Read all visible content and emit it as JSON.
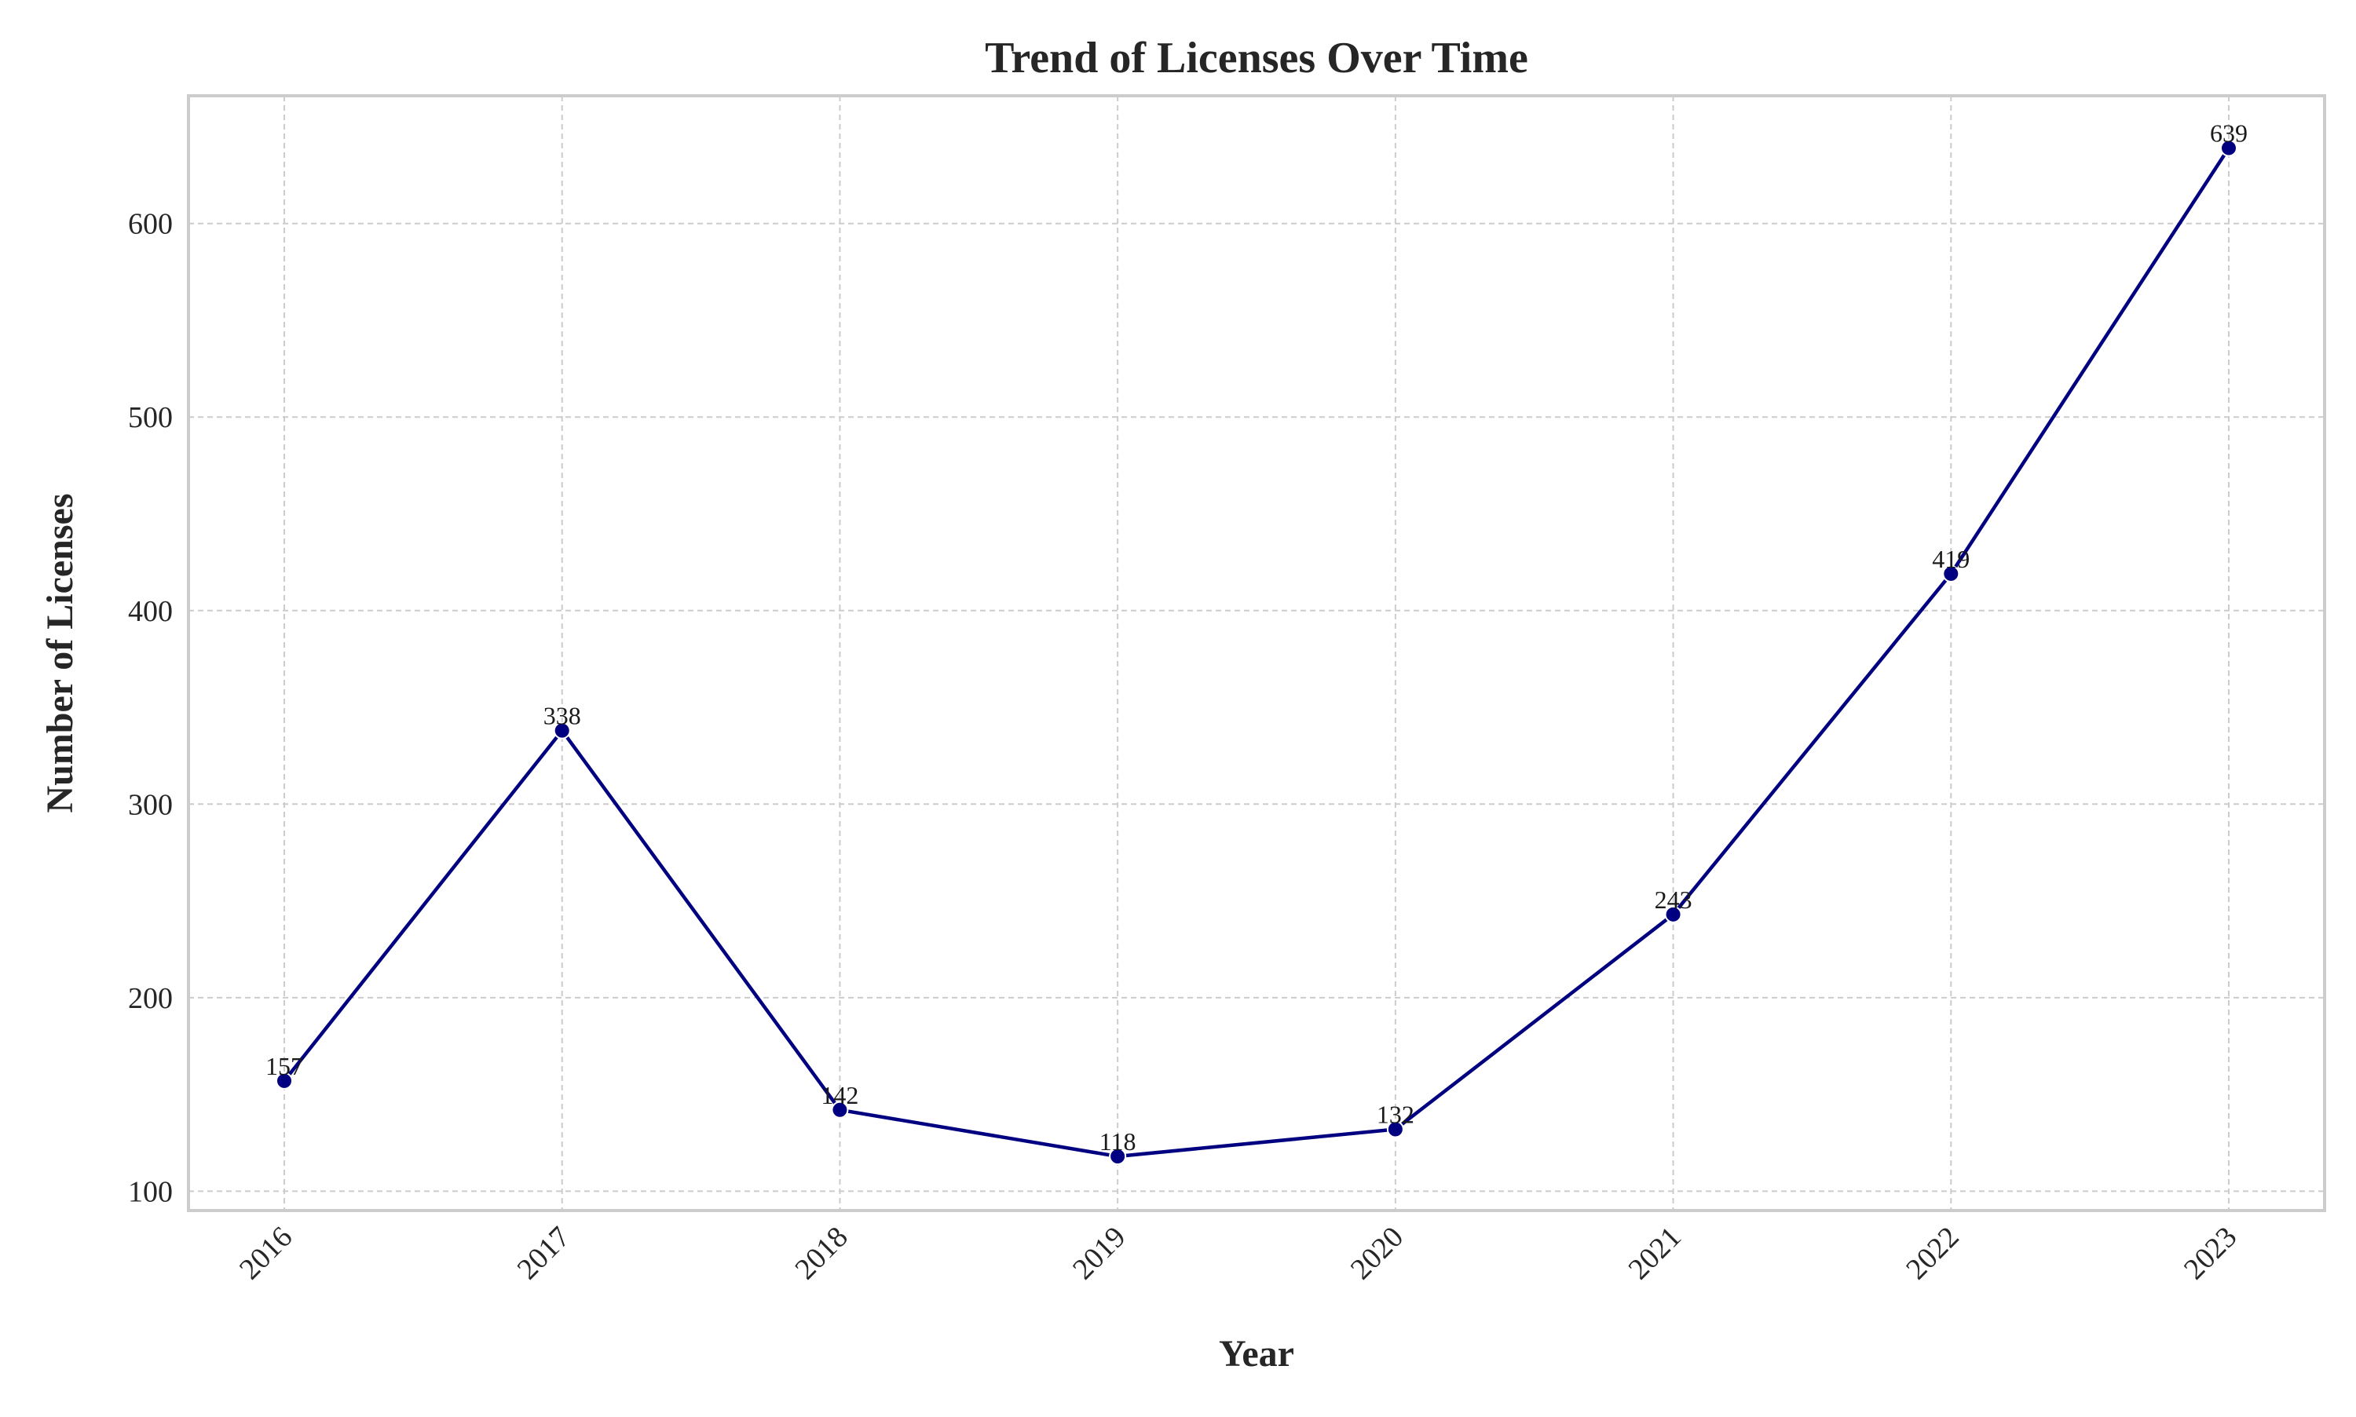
{
  "chart_data": {
    "type": "line",
    "title": "Trend of Licenses Over Time",
    "xlabel": "Year",
    "ylabel": "Number of Licenses",
    "categories": [
      "2016",
      "2017",
      "2018",
      "2019",
      "2020",
      "2021",
      "2022",
      "2023"
    ],
    "series": [
      {
        "values": [
          157,
          338,
          142,
          118,
          132,
          243,
          419,
          639
        ],
        "color": "#000080",
        "marker": "circle"
      }
    ],
    "data_labels": [
      "157",
      "338",
      "142",
      "118",
      "132",
      "243",
      "419",
      "639"
    ],
    "ylim": [
      90,
      666
    ],
    "yticks": [
      100,
      200,
      300,
      400,
      500,
      600
    ],
    "ytick_labels": [
      "100",
      "200",
      "300",
      "400",
      "500",
      "600"
    ],
    "grid": true,
    "xtick_rotation": 45
  }
}
